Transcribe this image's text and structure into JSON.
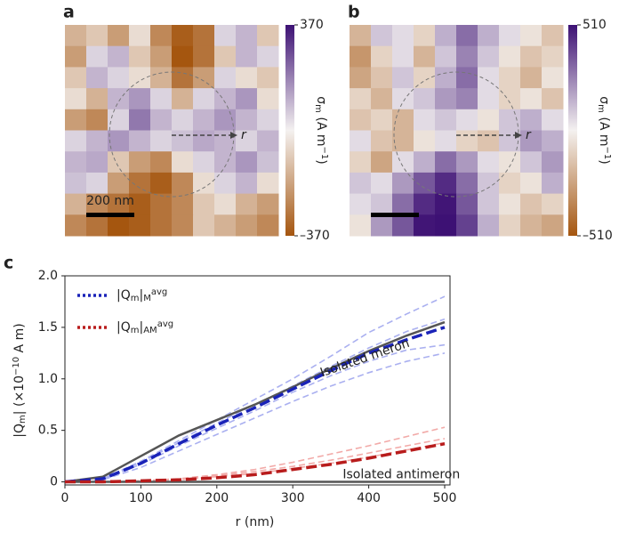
{
  "chart_data": [
    {
      "type": "heatmap",
      "letter": "a",
      "vlim": [
        -370,
        370
      ],
      "cticks": [
        370,
        {
          "value": -370,
          "label": "–370"
        }
      ],
      "cmap": [
        "#a5560f",
        "#f4f1f0",
        "#3d1174"
      ],
      "clabel": [
        {
          "text": "σ",
          "pos": "base"
        },
        {
          "text": "m",
          "pos": "sub"
        },
        {
          "text": " (A m",
          "pos": "base"
        },
        {
          "text": "−1",
          "pos": "sup"
        },
        {
          "text": ")",
          "pos": "base"
        }
      ],
      "scalebar": "200 nm",
      "annotation": "r",
      "values": [
        [
          -150,
          -100,
          -200,
          -50,
          -250,
          -350,
          -300,
          50,
          100,
          -100
        ],
        [
          -200,
          50,
          100,
          -100,
          -200,
          -370,
          -300,
          -100,
          100,
          50
        ],
        [
          -100,
          100,
          50,
          -50,
          -150,
          -300,
          -200,
          50,
          -50,
          -100
        ],
        [
          -50,
          -150,
          100,
          150,
          50,
          -150,
          50,
          100,
          150,
          -50
        ],
        [
          -200,
          -250,
          50,
          200,
          100,
          50,
          100,
          150,
          100,
          50
        ],
        [
          50,
          100,
          150,
          100,
          50,
          80,
          120,
          100,
          50,
          100
        ],
        [
          100,
          120,
          -100,
          -200,
          -250,
          -50,
          50,
          100,
          150,
          80
        ],
        [
          80,
          50,
          -200,
          -300,
          -350,
          -250,
          -50,
          50,
          100,
          -50
        ],
        [
          -150,
          -250,
          -300,
          -350,
          -300,
          -250,
          -100,
          -50,
          -150,
          -200
        ],
        [
          -250,
          -300,
          -370,
          -350,
          -300,
          -250,
          -100,
          -150,
          -200,
          -250
        ]
      ]
    },
    {
      "type": "heatmap",
      "letter": "b",
      "vlim": [
        -510,
        510
      ],
      "cticks": [
        510,
        {
          "value": -510,
          "label": "–510"
        }
      ],
      "cmap": [
        "#a5560f",
        "#f4f1f0",
        "#3d1174"
      ],
      "clabel": [
        {
          "text": "σ",
          "pos": "base"
        },
        {
          "text": "m",
          "pos": "sub"
        },
        {
          "text": " (A m",
          "pos": "base"
        },
        {
          "text": "−1",
          "pos": "sup"
        },
        {
          "text": ")",
          "pos": "base"
        }
      ],
      "annotation": "r",
      "values": [
        [
          -200,
          100,
          50,
          -100,
          150,
          300,
          150,
          50,
          -50,
          -150
        ],
        [
          -300,
          -100,
          50,
          -200,
          100,
          250,
          100,
          -50,
          -150,
          -100
        ],
        [
          -250,
          -150,
          100,
          -100,
          150,
          300,
          50,
          -100,
          -200,
          -50
        ],
        [
          -100,
          -200,
          50,
          100,
          200,
          250,
          50,
          -100,
          -50,
          -150
        ],
        [
          -150,
          -100,
          -200,
          50,
          100,
          50,
          -50,
          100,
          150,
          50
        ],
        [
          50,
          -150,
          -200,
          -50,
          50,
          -100,
          -150,
          100,
          200,
          150
        ],
        [
          -100,
          -250,
          50,
          150,
          300,
          200,
          50,
          -50,
          100,
          200
        ],
        [
          100,
          50,
          200,
          350,
          450,
          300,
          100,
          -100,
          -50,
          150
        ],
        [
          50,
          100,
          300,
          450,
          500,
          350,
          100,
          -50,
          -150,
          -100
        ],
        [
          -50,
          200,
          350,
          500,
          510,
          400,
          150,
          -100,
          -200,
          -250
        ]
      ]
    },
    {
      "type": "line",
      "letter": "c",
      "xlabel": "r (nm)",
      "ylabel": [
        {
          "text": "|Q",
          "pos": "base"
        },
        {
          "text": "m",
          "pos": "sub"
        },
        {
          "text": "| (×10",
          "pos": "base"
        },
        {
          "text": "−10",
          "pos": "sup"
        },
        {
          "text": " A m)",
          "pos": "base"
        }
      ],
      "x": [
        0,
        50,
        100,
        150,
        200,
        250,
        300,
        350,
        400,
        450,
        500
      ],
      "xlim": [
        0,
        500
      ],
      "xticks": [
        0,
        100,
        200,
        300,
        400,
        500
      ],
      "ylim": [
        -0.03,
        2.0
      ],
      "yticks": [
        0,
        0.5,
        {
          "value": 1,
          "label": "1.0"
        },
        1.5,
        {
          "value": 2,
          "label": "2.0"
        }
      ],
      "legend": "upper left",
      "annotations": [
        "Isolated meron",
        "Isolated antimeron"
      ],
      "series": [
        {
          "color": "#aab0f0",
          "dash": true,
          "values": [
            0,
            0.03,
            0.2,
            0.4,
            0.6,
            0.8,
            1.0,
            1.22,
            1.45,
            1.63,
            1.8
          ]
        },
        {
          "color": "#aab0f0",
          "dash": true,
          "values": [
            0,
            0.03,
            0.19,
            0.38,
            0.57,
            0.75,
            0.93,
            1.12,
            1.3,
            1.46,
            1.58
          ]
        },
        {
          "color": "#aab0f0",
          "dash": true,
          "values": [
            0,
            0.03,
            0.17,
            0.35,
            0.52,
            0.69,
            0.87,
            1.03,
            1.17,
            1.28,
            1.33
          ]
        },
        {
          "color": "#aab0f0",
          "dash": true,
          "values": [
            0,
            0.02,
            0.14,
            0.3,
            0.46,
            0.62,
            0.78,
            0.93,
            1.06,
            1.17,
            1.25
          ]
        },
        {
          "color": "#f2aaa8",
          "dash": true,
          "values": [
            0,
            0,
            0.01,
            0.03,
            0.07,
            0.12,
            0.19,
            0.27,
            0.35,
            0.44,
            0.53
          ]
        },
        {
          "color": "#f2aaa8",
          "dash": true,
          "values": [
            0,
            0,
            0.01,
            0.03,
            0.06,
            0.1,
            0.15,
            0.21,
            0.28,
            0.35,
            0.42
          ]
        },
        {
          "color": "#f2aaa8",
          "dash": true,
          "values": [
            0,
            0,
            0.01,
            0.02,
            0.05,
            0.08,
            0.13,
            0.18,
            0.24,
            0.31,
            0.38
          ]
        },
        {
          "color": "#555555",
          "dash": false,
          "values": [
            0,
            0.05,
            0.25,
            0.45,
            0.6,
            0.75,
            0.92,
            1.1,
            1.27,
            1.42,
            1.55
          ]
        },
        {
          "color": "#555555",
          "dash": false,
          "values": [
            0,
            0,
            0,
            0,
            0,
            0,
            0,
            0,
            0,
            0,
            0
          ]
        },
        {
          "color": "#1a23b8",
          "dash": true,
          "bold": true,
          "name": [
            {
              "text": "|Q",
              "pos": "base"
            },
            {
              "text": "m",
              "pos": "sub"
            },
            {
              "text": "|",
              "pos": "base"
            },
            {
              "text": "M",
              "pos": "sub"
            },
            {
              "text": "avg",
              "pos": "sup"
            }
          ],
          "values": [
            0,
            0.03,
            0.18,
            0.37,
            0.55,
            0.72,
            0.9,
            1.08,
            1.25,
            1.38,
            1.5
          ]
        },
        {
          "color": "#b81c1c",
          "dash": true,
          "bold": true,
          "name": [
            {
              "text": "|Q",
              "pos": "base"
            },
            {
              "text": "m",
              "pos": "sub"
            },
            {
              "text": "|",
              "pos": "base"
            },
            {
              "text": "AM",
              "pos": "sub"
            },
            {
              "text": "avg",
              "pos": "sup"
            }
          ],
          "values": [
            0,
            0,
            0.01,
            0.02,
            0.04,
            0.07,
            0.12,
            0.17,
            0.23,
            0.3,
            0.37
          ]
        }
      ]
    }
  ]
}
